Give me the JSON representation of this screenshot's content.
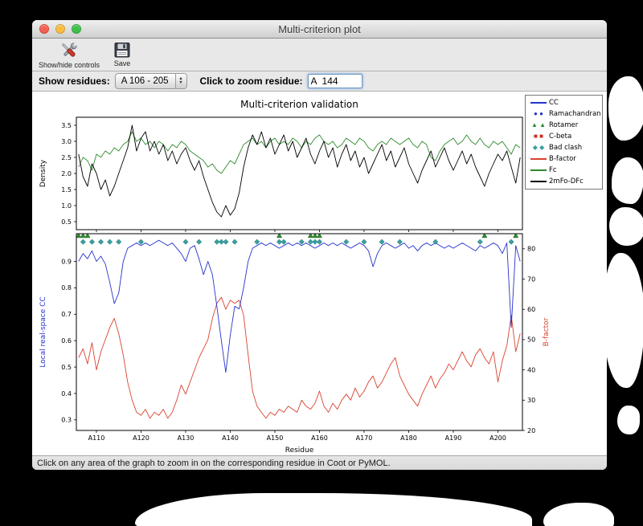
{
  "window": {
    "title": "Multi-criterion plot",
    "toolbar": {
      "show_hide_label": "Show/hide controls",
      "save_label": "Save"
    },
    "controls": {
      "show_residues_label": "Show residues:",
      "residue_range_value": "A 106 - 205",
      "zoom_residue_label": "Click to zoom residue:",
      "zoom_residue_value": "A  144"
    },
    "status_bar": "Click on any area of the graph to zoom in on the corresponding residue in Coot or PyMOL."
  },
  "icons": {
    "stepper_up": "▲",
    "stepper_down": "▼"
  },
  "chart_data": {
    "type": "line",
    "title": "Multi-criterion validation",
    "xlabel": "Residue",
    "x_start": 106,
    "x_end": 205,
    "x_tick_values": [
      110,
      120,
      130,
      140,
      150,
      160,
      170,
      180,
      190,
      200
    ],
    "x_tick_labels": [
      "A110",
      "A120",
      "A130",
      "A140",
      "A150",
      "A160",
      "A170",
      "A180",
      "A190",
      "A200"
    ],
    "top_plot": {
      "ylabel": "Density",
      "ylim": [
        0.25,
        3.75
      ],
      "yticks": [
        0.5,
        1.0,
        1.5,
        2.0,
        2.5,
        3.0,
        3.5
      ],
      "series": [
        {
          "name": "Fc",
          "color": "#2e8b2e",
          "values": [
            2.2,
            2.5,
            2.4,
            2.1,
            2.6,
            2.5,
            2.7,
            2.6,
            2.8,
            2.7,
            2.9,
            3.0,
            3.3,
            3.0,
            3.1,
            2.9,
            3.0,
            2.8,
            3.0,
            2.9,
            2.7,
            2.9,
            2.8,
            3.0,
            2.9,
            2.7,
            2.6,
            2.5,
            2.4,
            2.2,
            2.3,
            2.1,
            2.0,
            2.2,
            2.4,
            2.3,
            2.6,
            2.9,
            3.0,
            3.1,
            2.9,
            3.0,
            2.8,
            3.0,
            3.1,
            2.9,
            3.0,
            2.9,
            3.1,
            3.0,
            2.8,
            3.0,
            2.9,
            3.1,
            3.2,
            3.0,
            2.9,
            3.0,
            2.8,
            2.9,
            3.1,
            3.0,
            2.9,
            3.1,
            3.0,
            2.8,
            2.7,
            2.9,
            3.0,
            2.9,
            3.1,
            3.0,
            2.9,
            3.0,
            3.1,
            2.9,
            2.8,
            3.0,
            2.9,
            2.5,
            2.4,
            2.7,
            2.9,
            3.0,
            3.1,
            2.9,
            3.0,
            3.2,
            3.0,
            2.9,
            3.1,
            2.9,
            2.8,
            3.0,
            2.9,
            3.0,
            2.8,
            2.6,
            2.9,
            2.8
          ]
        },
        {
          "name": "2mFo-DFc",
          "color": "#000000",
          "values": [
            2.6,
            1.9,
            1.6,
            2.3,
            2.0,
            1.5,
            1.8,
            1.3,
            1.6,
            2.0,
            2.4,
            2.8,
            3.5,
            2.7,
            3.1,
            3.3,
            2.7,
            3.0,
            2.6,
            2.9,
            2.4,
            2.7,
            2.3,
            2.6,
            2.8,
            2.4,
            2.1,
            2.4,
            1.9,
            1.5,
            1.1,
            0.8,
            0.65,
            1.0,
            0.7,
            0.9,
            1.4,
            2.2,
            2.8,
            3.2,
            2.9,
            3.3,
            2.8,
            3.1,
            2.6,
            2.9,
            3.2,
            2.7,
            3.0,
            2.5,
            2.8,
            3.1,
            2.6,
            2.3,
            2.7,
            3.0,
            2.5,
            2.8,
            2.2,
            2.6,
            2.9,
            2.4,
            2.7,
            2.2,
            2.5,
            2.0,
            2.3,
            2.6,
            2.9,
            2.4,
            2.7,
            2.2,
            2.5,
            2.8,
            2.3,
            2.0,
            1.7,
            2.1,
            2.4,
            2.7,
            2.2,
            2.5,
            2.8,
            2.4,
            2.1,
            2.4,
            2.7,
            2.3,
            2.6,
            2.2,
            1.9,
            1.6,
            2.0,
            2.3,
            2.6,
            2.4,
            2.7,
            2.2,
            1.7,
            2.5
          ]
        }
      ]
    },
    "bottom_plot": {
      "ylabel_left": "Local real-space CC",
      "ylabel_right": "B-factor",
      "ylim_left": [
        0.26,
        1.005
      ],
      "yticks_left": [
        0.3,
        0.4,
        0.5,
        0.6,
        0.7,
        0.8,
        0.9
      ],
      "ylim_right": [
        20,
        85
      ],
      "yticks_right": [
        20,
        30,
        40,
        50,
        60,
        70,
        80
      ],
      "cc": {
        "name": "CC",
        "color": "#2633cc",
        "values": [
          0.9,
          0.93,
          0.91,
          0.94,
          0.9,
          0.92,
          0.89,
          0.82,
          0.74,
          0.78,
          0.9,
          0.95,
          0.96,
          0.97,
          0.96,
          0.97,
          0.96,
          0.97,
          0.98,
          0.97,
          0.96,
          0.97,
          0.95,
          0.93,
          0.9,
          0.95,
          0.96,
          0.91,
          0.85,
          0.9,
          0.85,
          0.73,
          0.6,
          0.48,
          0.62,
          0.73,
          0.72,
          0.8,
          0.9,
          0.95,
          0.96,
          0.97,
          0.96,
          0.97,
          0.96,
          0.95,
          0.96,
          0.97,
          0.96,
          0.97,
          0.96,
          0.97,
          0.96,
          0.95,
          0.96,
          0.97,
          0.96,
          0.97,
          0.96,
          0.97,
          0.96,
          0.95,
          0.96,
          0.97,
          0.96,
          0.94,
          0.88,
          0.93,
          0.96,
          0.97,
          0.96,
          0.95,
          0.96,
          0.97,
          0.95,
          0.96,
          0.94,
          0.96,
          0.97,
          0.96,
          0.97,
          0.96,
          0.95,
          0.96,
          0.95,
          0.96,
          0.97,
          0.96,
          0.95,
          0.94,
          0.96,
          0.95,
          0.96,
          0.97,
          0.96,
          0.93,
          0.97,
          0.65,
          0.96,
          0.9
        ]
      },
      "b_factor": {
        "name": "B-factor",
        "color": "#d9432f",
        "values": [
          44,
          47,
          42,
          49,
          40,
          46,
          50,
          54,
          57,
          52,
          45,
          36,
          30,
          26,
          25,
          27,
          24,
          26,
          25,
          27,
          24,
          26,
          30,
          35,
          32,
          36,
          40,
          44,
          47,
          50,
          57,
          62,
          64,
          60,
          63,
          62,
          63,
          58,
          45,
          33,
          28,
          26,
          24,
          26,
          25,
          27,
          26,
          28,
          27,
          26,
          30,
          28,
          27,
          29,
          33,
          28,
          26,
          29,
          27,
          30,
          32,
          30,
          34,
          31,
          33,
          36,
          38,
          34,
          36,
          39,
          42,
          44,
          38,
          35,
          32,
          30,
          28,
          32,
          35,
          38,
          34,
          37,
          39,
          42,
          40,
          43,
          46,
          43,
          41,
          45,
          47,
          44,
          42,
          46,
          36,
          43,
          48,
          58,
          46,
          52
        ]
      },
      "markers": {
        "rotamer": {
          "shape": "triangle",
          "color": "#2e8b2e",
          "y": 0.997,
          "residues": [
            106,
            107,
            108,
            151,
            158,
            159,
            160,
            197,
            204
          ]
        },
        "bad_clash": {
          "shape": "diamond",
          "color": "#3aa0a0",
          "y": 0.974,
          "residues": [
            107,
            109,
            111,
            113,
            115,
            120,
            130,
            133,
            137,
            138,
            139,
            141,
            146,
            151,
            152,
            156,
            158,
            159,
            160,
            166,
            170,
            174,
            178,
            186,
            196,
            203
          ]
        }
      }
    },
    "legend": [
      {
        "label": "CC",
        "type": "line",
        "color": "#2633cc"
      },
      {
        "label": "Ramachandran",
        "type": "circles",
        "color": "#2633cc"
      },
      {
        "label": "Rotamer",
        "type": "triangles",
        "color": "#2e8b2e"
      },
      {
        "label": "C-beta",
        "type": "squares",
        "color": "#cc2a1d"
      },
      {
        "label": "Bad clash",
        "type": "diamonds",
        "color": "#3aa0a0"
      },
      {
        "label": "B-factor",
        "type": "line",
        "color": "#d9432f"
      },
      {
        "label": "Fc",
        "type": "line",
        "color": "#2e8b2e"
      },
      {
        "label": "2mFo-DFc",
        "type": "line",
        "color": "#000000"
      }
    ]
  }
}
